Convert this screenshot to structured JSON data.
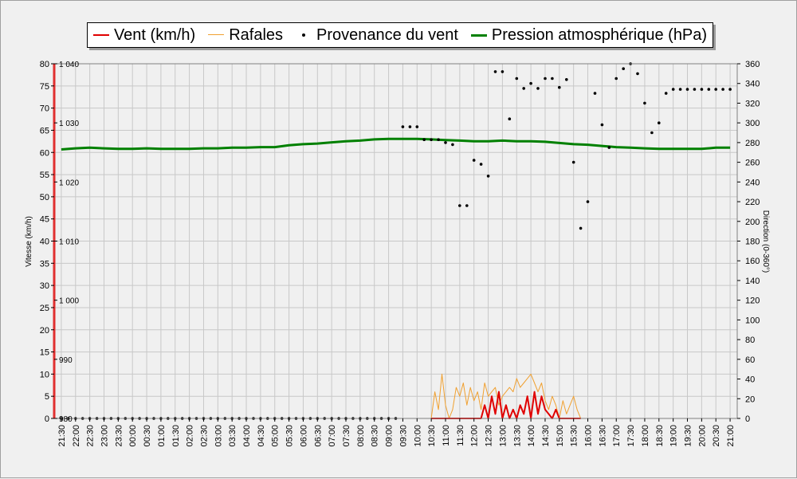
{
  "chart_data": {
    "type": "line",
    "legend": [
      {
        "name": "Vent (km/h)",
        "color": "#e00000",
        "symbol": "line"
      },
      {
        "name": "Rafales",
        "color": "#f0a030",
        "symbol": "line"
      },
      {
        "name": "Provenance du vent",
        "color": "#000000",
        "symbol": "dot"
      },
      {
        "name": "Pression atmosphérique (hPa)",
        "color": "#008000",
        "symbol": "line"
      }
    ],
    "y_left_label": "Vitesse (km/h)",
    "y_right_label": "Direction (0-360°)",
    "y_left_ticks": [
      "80",
      "75",
      "70",
      "65",
      "60",
      "55",
      "50",
      "45",
      "40",
      "35",
      "30",
      "25",
      "20",
      "15",
      "10",
      "5",
      "0"
    ],
    "y_right_ticks": [
      "360",
      "340",
      "320",
      "300",
      "280",
      "260",
      "240",
      "220",
      "200",
      "180",
      "160",
      "140",
      "120",
      "100",
      "80",
      "60",
      "40",
      "20",
      "0"
    ],
    "pressure_ticks": [
      "1 040",
      "1 030",
      "1 020",
      "1 010",
      "1 000",
      "990",
      "980"
    ],
    "x_ticks": [
      "21:30",
      "22:00",
      "22:30",
      "23:00",
      "23:30",
      "00:00",
      "00:30",
      "01:00",
      "01:30",
      "02:00",
      "02:30",
      "03:00",
      "03:30",
      "04:00",
      "04:30",
      "05:00",
      "05:30",
      "06:00",
      "06:30",
      "07:00",
      "07:30",
      "08:00",
      "08:30",
      "09:00",
      "09:30",
      "10:00",
      "10:30",
      "11:00",
      "11:30",
      "12:00",
      "12:30",
      "13:00",
      "13:30",
      "14:00",
      "14:30",
      "15:00",
      "15:30",
      "16:00",
      "16:30",
      "17:00",
      "17:30",
      "18:00",
      "18:30",
      "19:00",
      "19:30",
      "20:00",
      "20:30",
      "21:00"
    ],
    "ylim_speed": [
      0,
      80
    ],
    "ylim_direction": [
      0,
      360
    ],
    "ylim_pressure": [
      980,
      1040
    ],
    "x_unit": "minutes since 21:00 (first tick 21:30 = 30)",
    "pressure": {
      "x": [
        30,
        90,
        150,
        210,
        270,
        330,
        390,
        450,
        510,
        570,
        630,
        690,
        750,
        810,
        870,
        930,
        990,
        1050,
        1110,
        1170,
        1230,
        1290,
        1350,
        1410,
        1470,
        1530,
        1590,
        1650,
        1710,
        1770,
        1830,
        1890,
        1950,
        2010,
        2070,
        2130,
        2190,
        2250,
        2310,
        2370,
        2430,
        2490,
        2550,
        2610,
        2670,
        2730,
        2790,
        2850
      ],
      "values": [
        1025.5,
        1025.7,
        1025.8,
        1025.7,
        1025.6,
        1025.6,
        1025.7,
        1025.6,
        1025.6,
        1025.6,
        1025.7,
        1025.7,
        1025.8,
        1025.8,
        1025.9,
        1025.9,
        1026.2,
        1026.4,
        1026.5,
        1026.7,
        1026.9,
        1027.0,
        1027.2,
        1027.3,
        1027.3,
        1027.3,
        1027.2,
        1027.1,
        1027.0,
        1026.9,
        1026.9,
        1027.0,
        1026.9,
        1026.9,
        1026.8,
        1026.6,
        1026.4,
        1026.3,
        1026.1,
        1025.9,
        1025.8,
        1025.7,
        1025.6,
        1025.6,
        1025.6,
        1025.6,
        1025.8,
        1025.8
      ]
    },
    "gusts": {
      "x": [
        1590,
        1605,
        1620,
        1635,
        1650,
        1665,
        1680,
        1695,
        1710,
        1725,
        1740,
        1755,
        1770,
        1785,
        1800,
        1815,
        1830,
        1845,
        1860,
        1875,
        1890,
        1905,
        1920,
        1935,
        1950,
        1965,
        1980,
        1995,
        2010,
        2025,
        2040,
        2055,
        2070,
        2085,
        2100,
        2115,
        2130,
        2145,
        2160,
        2175,
        2190,
        2205,
        2220
      ],
      "values": [
        0,
        6,
        2,
        10,
        3,
        0,
        2,
        7,
        5,
        8,
        3,
        7,
        4,
        6,
        2,
        8,
        5,
        6,
        7,
        3,
        5,
        6,
        7,
        6,
        9,
        7,
        8,
        9,
        10,
        8,
        6,
        8,
        4,
        2,
        5,
        3,
        0,
        4,
        1,
        3,
        5,
        2,
        0
      ]
    },
    "wind": {
      "x": [
        1590,
        1800,
        1815,
        1830,
        1845,
        1860,
        1875,
        1890,
        1905,
        1920,
        1935,
        1950,
        1965,
        1980,
        1995,
        2010,
        2025,
        2040,
        2055,
        2070,
        2085,
        2100,
        2115,
        2130,
        2145,
        2160,
        2175,
        2190,
        2205,
        2220
      ],
      "values": [
        0,
        0,
        3,
        0,
        5,
        1,
        6,
        0,
        3,
        0,
        2,
        0,
        3,
        1,
        5,
        0,
        6,
        1,
        5,
        2,
        1,
        0,
        2,
        0,
        0,
        0,
        0,
        0,
        0,
        0
      ]
    },
    "direction": {
      "x": [
        30,
        60,
        90,
        120,
        150,
        180,
        210,
        240,
        270,
        300,
        330,
        360,
        390,
        420,
        450,
        480,
        510,
        540,
        570,
        600,
        630,
        660,
        690,
        720,
        750,
        780,
        810,
        840,
        870,
        900,
        930,
        960,
        990,
        1020,
        1050,
        1080,
        1110,
        1140,
        1170,
        1200,
        1230,
        1260,
        1290,
        1320,
        1350,
        1380,
        1410,
        1440,
        1470,
        1500,
        1530,
        1560,
        1590,
        1620,
        1650,
        1680,
        1710,
        1740,
        1770,
        1800,
        1830,
        1860,
        1890,
        1920,
        1950,
        1980,
        2010,
        2040,
        2070,
        2100,
        2130,
        2160,
        2190,
        2220,
        2250,
        2280,
        2310,
        2340,
        2370,
        2400,
        2430,
        2460,
        2490,
        2520,
        2550,
        2580,
        2610,
        2640,
        2670,
        2700,
        2730,
        2760,
        2790,
        2820,
        2850
      ],
      "values": [
        0,
        0,
        0,
        0,
        0,
        0,
        0,
        0,
        0,
        0,
        0,
        0,
        0,
        0,
        0,
        0,
        0,
        0,
        0,
        0,
        0,
        0,
        0,
        0,
        0,
        0,
        0,
        0,
        0,
        0,
        0,
        0,
        0,
        0,
        0,
        0,
        0,
        0,
        0,
        0,
        0,
        0,
        0,
        0,
        0,
        0,
        0,
        0,
        296,
        296,
        296,
        283,
        283,
        283,
        280,
        278,
        216,
        216,
        262,
        258,
        246,
        352,
        352,
        304,
        345,
        335,
        340,
        335,
        345,
        345,
        336,
        344,
        260,
        193,
        220,
        330,
        298,
        275,
        345,
        355,
        360,
        350,
        320,
        290,
        300,
        330,
        334,
        334,
        334,
        334,
        334,
        334,
        334,
        334,
        334
      ]
    }
  }
}
